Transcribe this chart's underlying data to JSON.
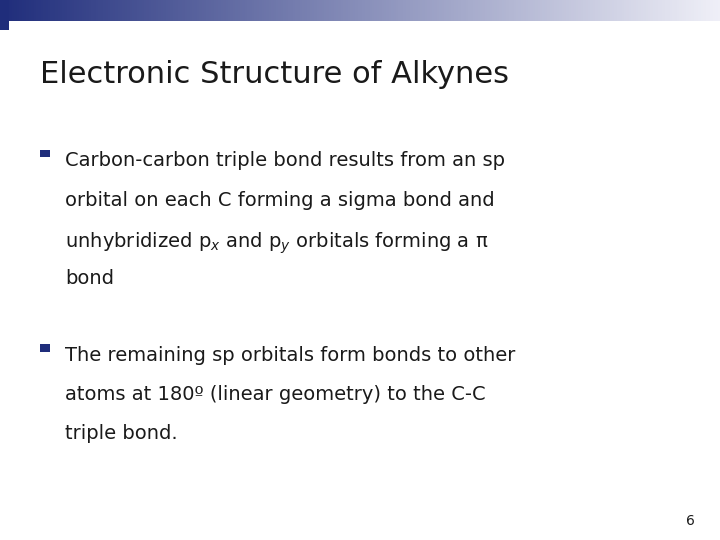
{
  "title": "Electronic Structure of Alkynes",
  "bullet1_line1": "Carbon-carbon triple bond results from an sp",
  "bullet1_line2": "orbital on each C forming a sigma bond and",
  "bullet1_line3": "unhybridized p$_{x}$ and p$_{y}$ orbitals forming a π",
  "bullet1_line4": "bond",
  "bullet2_line1": "The remaining sp orbitals form bonds to other",
  "bullet2_line2": "atoms at 180º (linear geometry) to the C-C",
  "bullet2_line3": "triple bond.",
  "page_number": "6",
  "bg_color": "#ffffff",
  "title_color": "#1a1a1a",
  "text_color": "#1a1a1a",
  "bullet_color": "#1f2d7b",
  "title_fontsize": 22,
  "text_fontsize": 14,
  "page_num_fontsize": 10,
  "bar_dark_r": 0.122,
  "bar_dark_g": 0.176,
  "bar_dark_b": 0.482,
  "bar_light_r": 0.94,
  "bar_light_g": 0.94,
  "bar_light_b": 0.97
}
